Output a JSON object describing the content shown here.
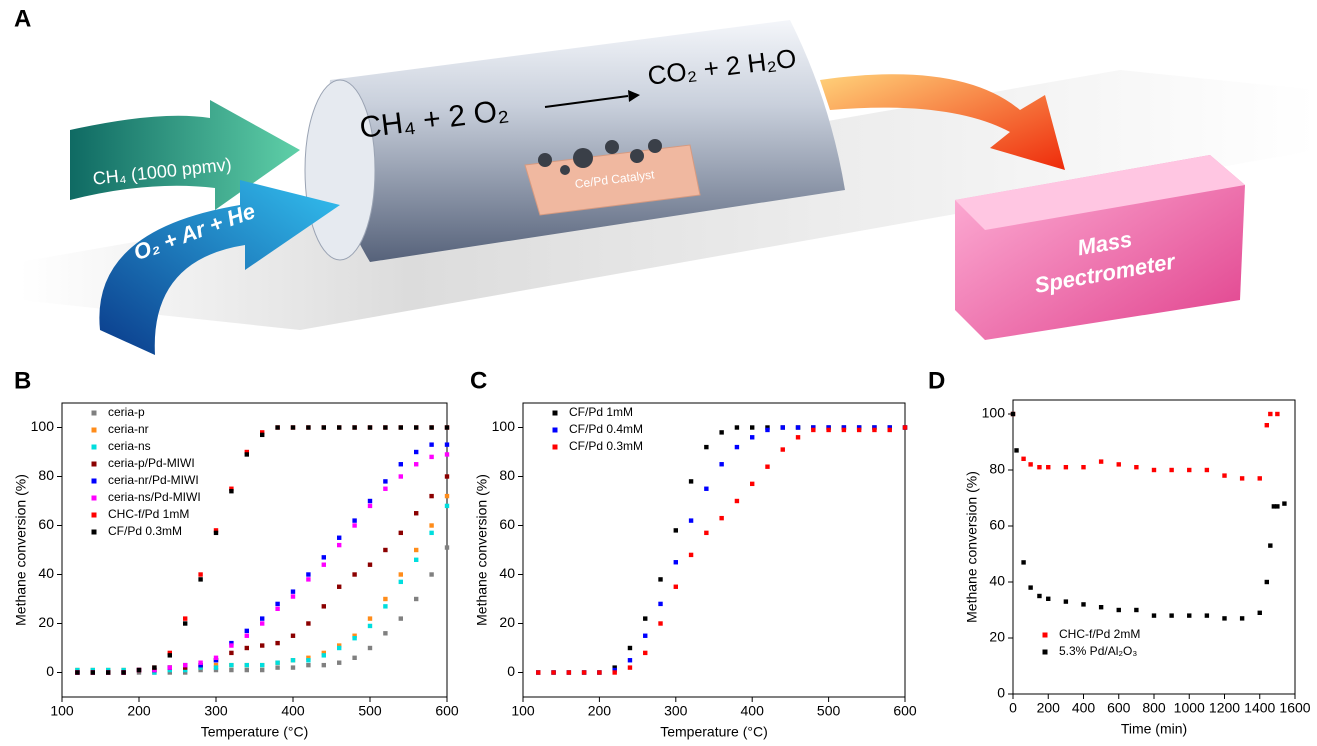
{
  "panels": [
    "A",
    "B",
    "C",
    "D"
  ],
  "diagram": {
    "reactants": "CH₄ + 2 O₂",
    "products": "CO₂ + 2 H₂O",
    "feed_1": "CH₄ (1000 ppmv)",
    "feed_2": "O₂ + Ar + He",
    "catalyst": "Ce/Pd Catalyst",
    "detector_line_1": "Mass",
    "detector_line_2": "Spectrometer"
  },
  "chart_data": [
    {
      "type": "scatter",
      "xlabel": "Temperature (°C)",
      "ylabel": "Methane conversion (%)",
      "x": [
        120,
        140,
        160,
        180,
        200,
        220,
        240,
        260,
        280,
        300,
        320,
        340,
        360,
        380,
        400,
        420,
        440,
        460,
        480,
        500,
        520,
        540,
        560,
        580,
        600
      ],
      "xlim": [
        100,
        600
      ],
      "xticks": [
        100,
        200,
        300,
        400,
        500,
        600
      ],
      "ylim": [
        -10,
        110
      ],
      "yticks": [
        0,
        20,
        40,
        60,
        80,
        100
      ],
      "legend": "upper left",
      "series": [
        {
          "name": "ceria-p",
          "color": "#808080",
          "values": [
            0,
            0,
            0,
            0,
            0,
            0,
            0,
            0,
            1,
            1,
            1,
            1,
            1,
            2,
            2,
            3,
            3,
            4,
            6,
            10,
            16,
            22,
            30,
            40,
            51
          ]
        },
        {
          "name": "ceria-nr",
          "color": "#ff8c1a",
          "values": [
            1,
            1,
            1,
            1,
            1,
            1,
            2,
            2,
            2,
            3,
            3,
            3,
            3,
            4,
            5,
            6,
            8,
            11,
            15,
            22,
            30,
            40,
            50,
            60,
            72
          ]
        },
        {
          "name": "ceria-ns",
          "color": "#00dede",
          "values": [
            1,
            1,
            1,
            1,
            1,
            0,
            1,
            1,
            2,
            2,
            3,
            3,
            3,
            4,
            5,
            5,
            7,
            10,
            14,
            19,
            27,
            37,
            46,
            57,
            68
          ]
        },
        {
          "name": "ceria-p/Pd-MIWI",
          "color": "#8b0000",
          "values": [
            0,
            0,
            0,
            0,
            1,
            1,
            2,
            2,
            3,
            5,
            8,
            10,
            11,
            12,
            15,
            20,
            27,
            35,
            40,
            44,
            50,
            57,
            65,
            72,
            80
          ]
        },
        {
          "name": "ceria-nr/Pd-MIWI",
          "color": "#0000ff",
          "values": [
            0,
            0,
            0,
            0,
            1,
            1,
            2,
            3,
            3,
            5,
            12,
            17,
            22,
            28,
            33,
            40,
            47,
            55,
            62,
            70,
            78,
            85,
            90,
            93,
            93
          ]
        },
        {
          "name": "ceria-ns/Pd-MIWI",
          "color": "#ff00ff",
          "values": [
            0,
            0,
            0,
            0,
            1,
            1,
            2,
            3,
            4,
            6,
            11,
            15,
            20,
            26,
            31,
            38,
            44,
            52,
            60,
            68,
            75,
            80,
            85,
            88,
            89
          ]
        },
        {
          "name": "CHC-f/Pd 1mM",
          "color": "#ff0000",
          "values": [
            0,
            0,
            0,
            0,
            1,
            2,
            8,
            22,
            40,
            58,
            75,
            90,
            98,
            100,
            100,
            100,
            100,
            100,
            100,
            100,
            100,
            100,
            100,
            100,
            100
          ]
        },
        {
          "name": "CF/Pd 0.3mM",
          "color": "#000000",
          "values": [
            0,
            0,
            0,
            0,
            1,
            2,
            7,
            20,
            38,
            57,
            74,
            89,
            97,
            100,
            100,
            100,
            100,
            100,
            100,
            100,
            100,
            100,
            100,
            100,
            100
          ]
        }
      ]
    },
    {
      "type": "scatter",
      "xlabel": "Temperature (°C)",
      "ylabel": "Methane conversion (%)",
      "x": [
        120,
        140,
        160,
        180,
        200,
        220,
        240,
        260,
        280,
        300,
        320,
        340,
        360,
        380,
        400,
        420,
        440,
        460,
        480,
        500,
        520,
        540,
        560,
        580,
        600
      ],
      "xlim": [
        100,
        600
      ],
      "xticks": [
        100,
        200,
        300,
        400,
        500,
        600
      ],
      "ylim": [
        -10,
        110
      ],
      "yticks": [
        0,
        20,
        40,
        60,
        80,
        100
      ],
      "legend": "upper left",
      "series": [
        {
          "name": "CF/Pd 1mM",
          "color": "#000000",
          "values": [
            0,
            0,
            0,
            0,
            0,
            2,
            10,
            22,
            38,
            58,
            78,
            92,
            98,
            100,
            100,
            100,
            100,
            100,
            100,
            100,
            100,
            100,
            100,
            100,
            100
          ]
        },
        {
          "name": "CF/Pd 0.4mM",
          "color": "#0000ff",
          "values": [
            0,
            0,
            0,
            0,
            0,
            1,
            5,
            15,
            28,
            45,
            62,
            75,
            85,
            92,
            96,
            99,
            100,
            100,
            100,
            100,
            100,
            100,
            100,
            100,
            100
          ]
        },
        {
          "name": "CF/Pd 0.3mM",
          "color": "#ff0000",
          "values": [
            0,
            0,
            0,
            0,
            0,
            0,
            2,
            8,
            20,
            35,
            48,
            57,
            63,
            70,
            77,
            84,
            91,
            96,
            99,
            99,
            99,
            99,
            99,
            99,
            100
          ]
        }
      ]
    },
    {
      "type": "scatter",
      "xlabel": "Time (min)",
      "ylabel": "Methane conversion (%)",
      "xlim": [
        0,
        1600
      ],
      "xticks": [
        0,
        200,
        400,
        600,
        800,
        1000,
        1200,
        1400,
        1600
      ],
      "ylim": [
        0,
        105
      ],
      "yticks": [
        0,
        20,
        40,
        60,
        80,
        100
      ],
      "legend": "lower left",
      "series": [
        {
          "name": "CHC-f/Pd 2mM",
          "color": "#ff0000",
          "x": [
            0,
            60,
            100,
            150,
            200,
            300,
            400,
            500,
            600,
            700,
            800,
            900,
            1000,
            1100,
            1200,
            1300,
            1400,
            1440,
            1460,
            1500
          ],
          "values": [
            100,
            84,
            82,
            81,
            81,
            81,
            81,
            83,
            82,
            81,
            80,
            80,
            80,
            80,
            78,
            77,
            77,
            96,
            100,
            100
          ]
        },
        {
          "name": "5.3% Pd/Al₂O₃",
          "color": "#000000",
          "x": [
            0,
            20,
            60,
            100,
            150,
            200,
            300,
            400,
            500,
            600,
            700,
            800,
            900,
            1000,
            1100,
            1200,
            1300,
            1400,
            1440,
            1460,
            1480,
            1500,
            1540
          ],
          "values": [
            100,
            87,
            47,
            38,
            35,
            34,
            33,
            32,
            31,
            30,
            30,
            28,
            28,
            28,
            28,
            27,
            27,
            29,
            40,
            53,
            67,
            67,
            68
          ]
        }
      ]
    }
  ]
}
